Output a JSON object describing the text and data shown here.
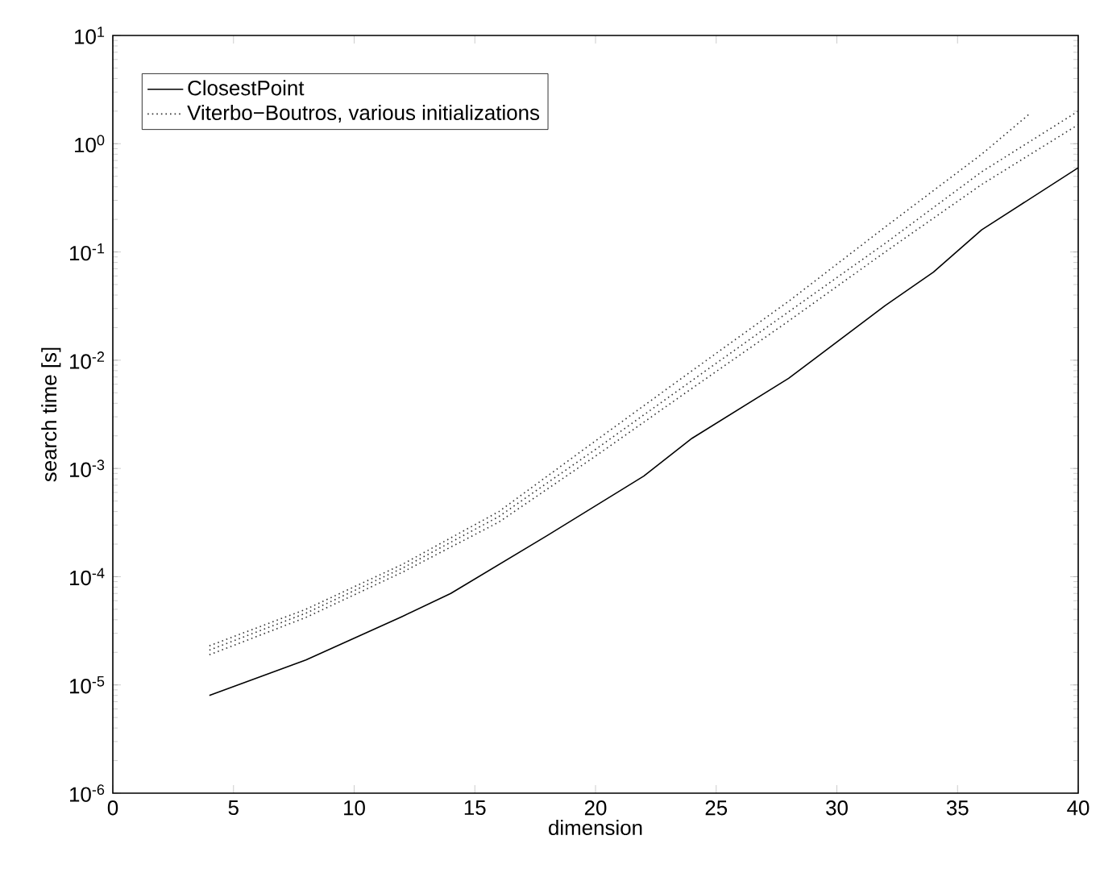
{
  "chart_data": {
    "type": "line",
    "xlabel": "dimension",
    "ylabel": "search time [s]",
    "log": "y",
    "legend": "top left",
    "grid": false,
    "xlim": [
      0,
      40
    ],
    "xticks": [
      0,
      5,
      10,
      15,
      20,
      25,
      30,
      35,
      40
    ],
    "ylim": [
      1e-06,
      10
    ],
    "yticks": [
      {
        "value": 1e-06,
        "label": "10$^{-6}$"
      },
      {
        "value": 1e-05,
        "label": "10$^{-5}$"
      },
      {
        "value": 0.0001,
        "label": "10$^{-4}$"
      },
      {
        "value": 0.001,
        "label": "10$^{-3}$"
      },
      {
        "value": 0.01,
        "label": "10$^{-2}$"
      },
      {
        "value": 0.1,
        "label": "10$^{-1}$"
      },
      {
        "value": 1,
        "label": "10$^{0}$"
      },
      {
        "value": 10,
        "label": "10$^{1}$"
      }
    ],
    "series": [
      {
        "name": "ClosestPoint",
        "color": "#000000",
        "line_style": "solid",
        "x": [
          4,
          8,
          12,
          14,
          18,
          22,
          24,
          28,
          32,
          34,
          36,
          40
        ],
        "values": [
          8e-06,
          1.7e-05,
          4.3e-05,
          7e-05,
          0.00024,
          0.00085,
          0.0019,
          0.0068,
          0.032,
          0.065,
          0.16,
          0.6
        ]
      },
      {
        "name": "Viterbo−Boutros, various initializations",
        "color": "#333333",
        "line_style": "dotted",
        "x": [
          4,
          8,
          12,
          16,
          20,
          24,
          28,
          32,
          36,
          38
        ],
        "values": [
          2.3e-05,
          5e-05,
          0.00013,
          0.0004,
          0.0018,
          0.008,
          0.035,
          0.17,
          0.8,
          1.9
        ]
      },
      {
        "color": "#333333",
        "line_style": "dotted",
        "x": [
          4,
          8,
          12,
          16,
          20,
          24,
          28,
          32,
          36,
          40
        ],
        "values": [
          2.1e-05,
          4.6e-05,
          0.00012,
          0.00036,
          0.0015,
          0.0065,
          0.028,
          0.12,
          0.55,
          2.0
        ]
      },
      {
        "color": "#333333",
        "line_style": "dotted",
        "x": [
          4,
          8,
          12,
          16,
          20,
          24,
          28,
          32,
          36,
          40
        ],
        "values": [
          1.9e-05,
          4.2e-05,
          0.00011,
          0.00032,
          0.0013,
          0.0055,
          0.023,
          0.1,
          0.42,
          1.5
        ]
      }
    ]
  }
}
